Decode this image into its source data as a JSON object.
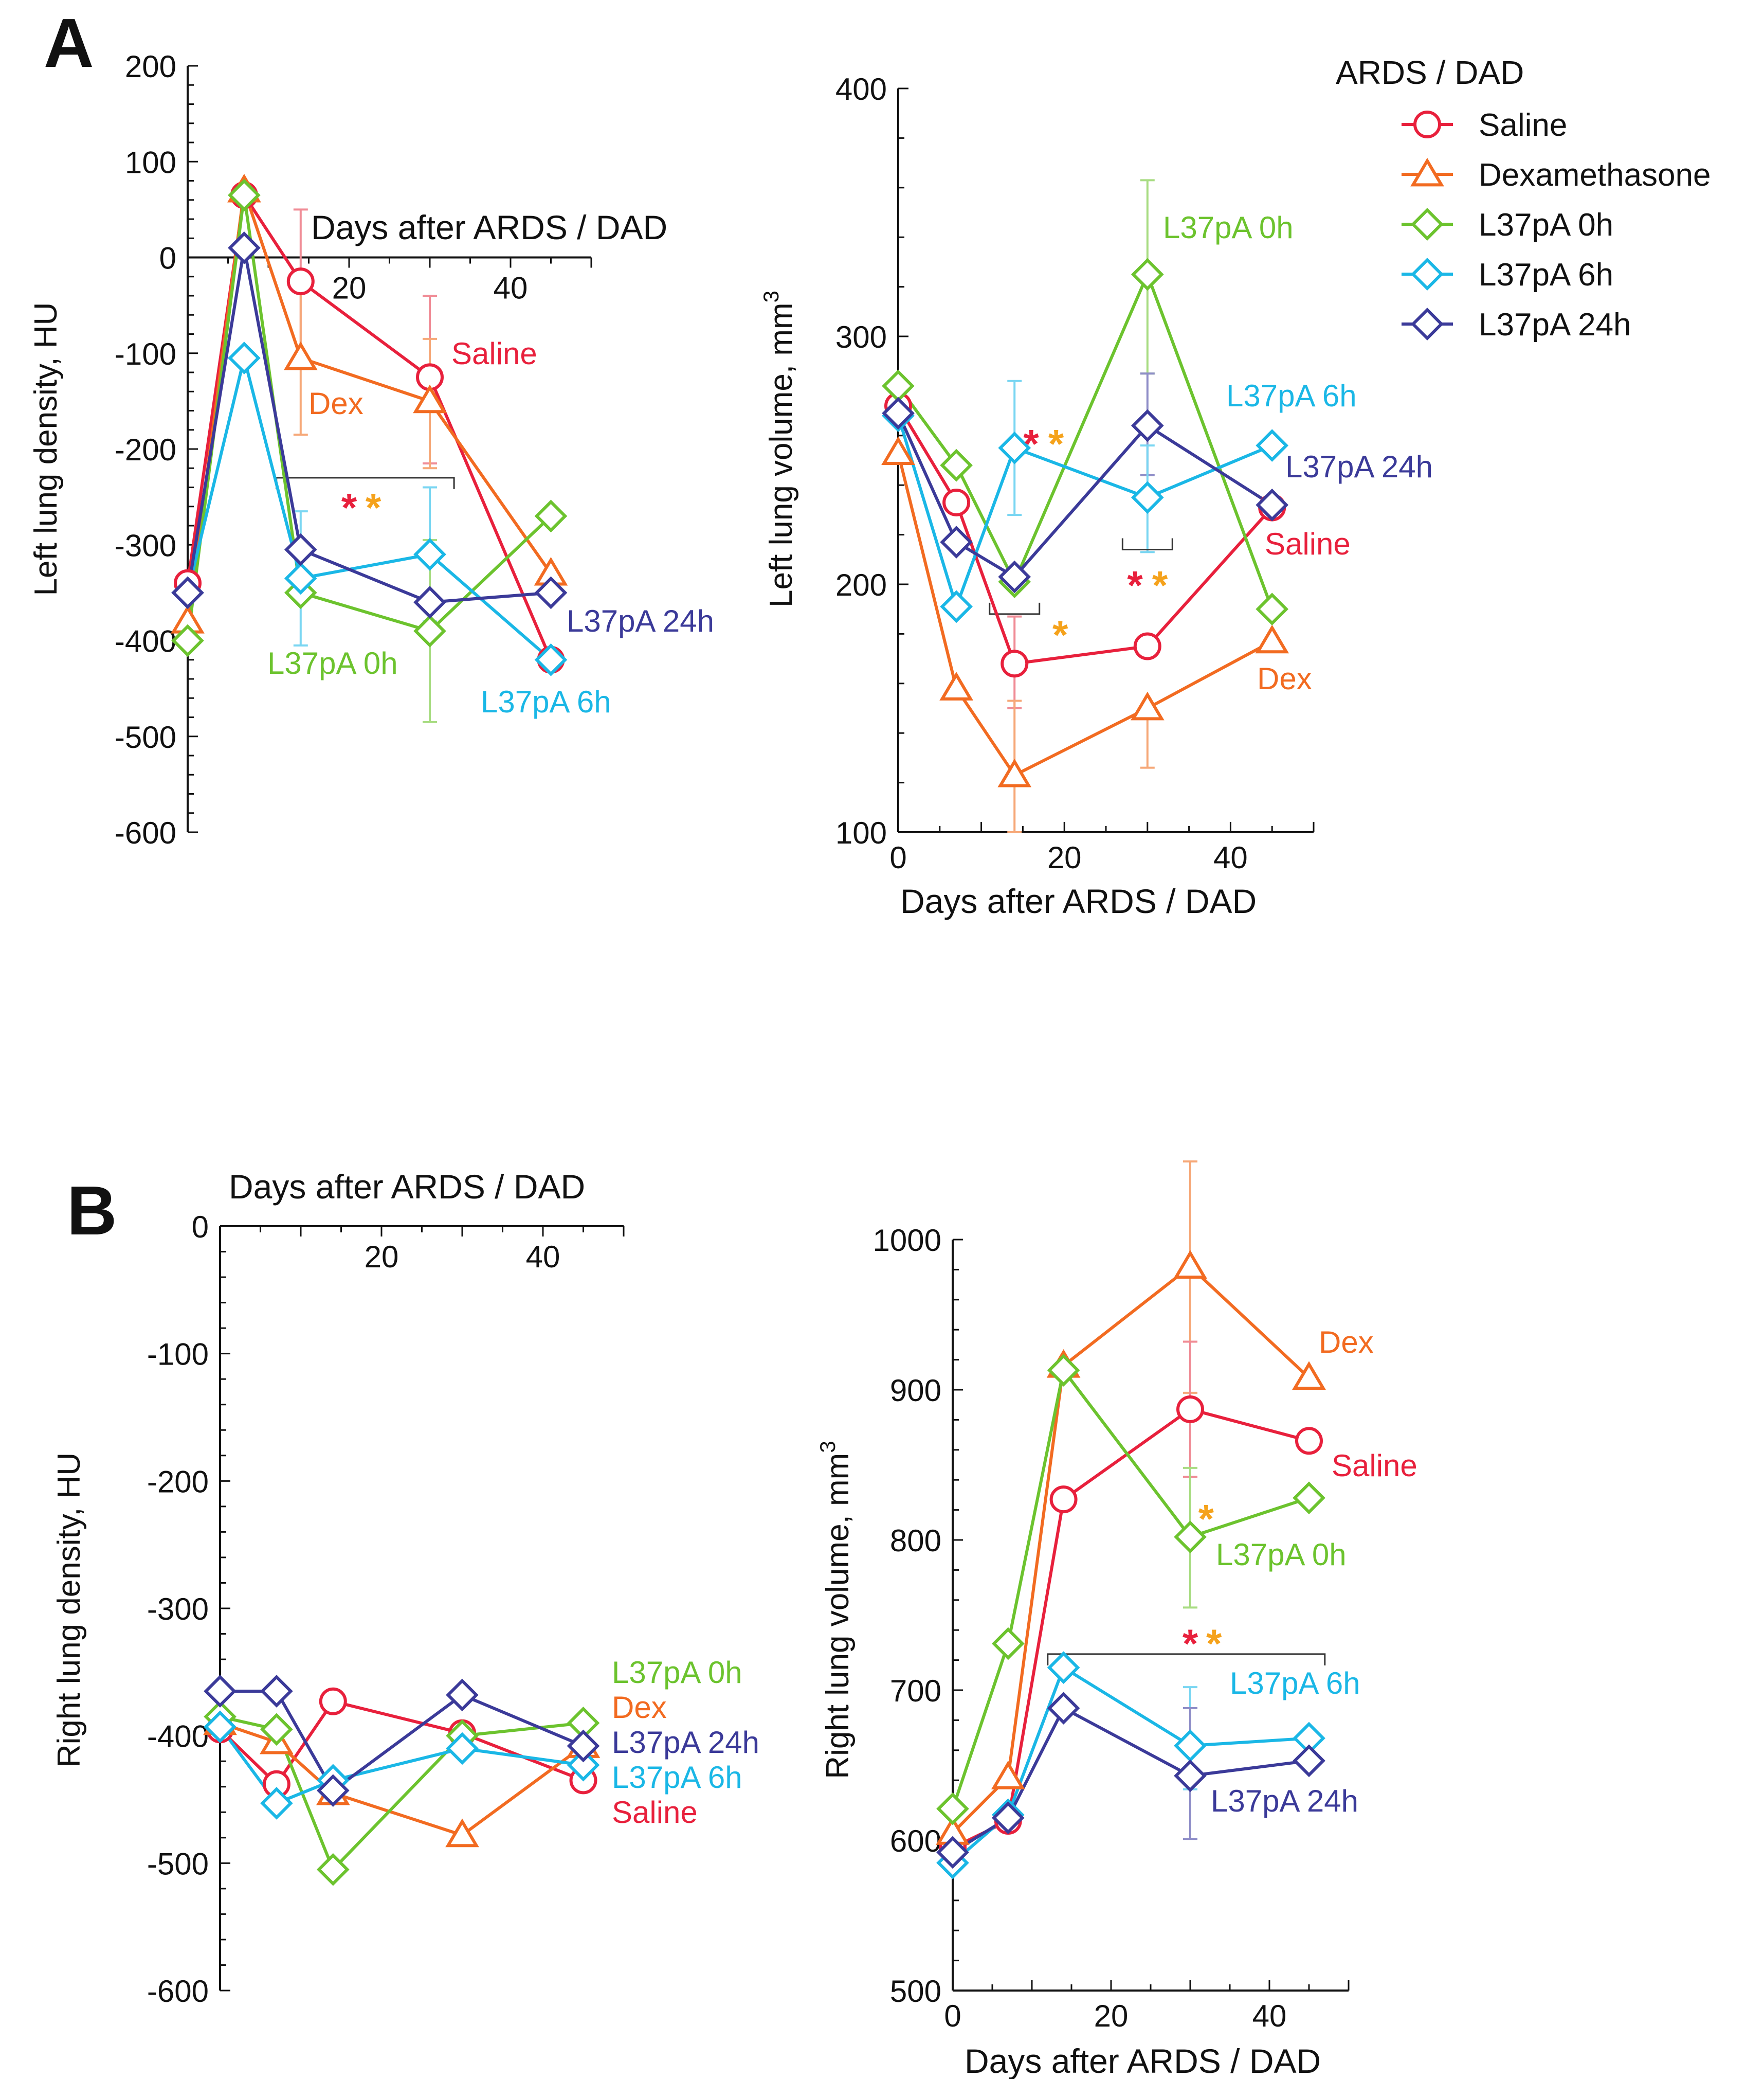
{
  "panel_labels": {
    "a": "A",
    "b": "B"
  },
  "legend": {
    "title": "ARDS / DAD",
    "entries": [
      "Saline",
      "Dexamethasone",
      "L37pA 0h",
      "L37pA 6h",
      "L37pA 24h"
    ]
  },
  "colors": {
    "saline": "#e8203c",
    "dex": "#f26b21",
    "l0": "#6cc32e",
    "l6": "#1ab7e6",
    "l24": "#3b3a99",
    "star_red": "#e8203c",
    "star_orange": "#f5a21b",
    "axis": "#111111",
    "errorbar_saline": "#f08c96",
    "errorbar_dex": "#f6a878",
    "errorbar_l0": "#a8dc82",
    "errorbar_l6": "#7ad6f2",
    "errorbar_l24": "#8f8ec8"
  },
  "chart_data": [
    {
      "id": "A_density",
      "type": "line",
      "title": "",
      "xlabel": "Days after ARDS / DAD",
      "ylabel": "Left lung density, HU",
      "xlim": [
        0,
        50
      ],
      "ylim": [
        -600,
        200
      ],
      "yticks": [
        200,
        100,
        0,
        -100,
        -200,
        -300,
        -400,
        -500,
        -600
      ],
      "xticks": [
        20,
        40
      ],
      "x_axis_at": "y=0 (top)",
      "series": [
        {
          "key": "saline",
          "name": "Saline",
          "marker": "circle",
          "label": "Saline",
          "x": [
            0,
            7,
            14,
            30,
            45
          ],
          "y": [
            -340,
            65,
            -25,
            -125,
            -420
          ]
        },
        {
          "key": "dex",
          "name": "Dexamethasone",
          "marker": "triangle",
          "label": "Dex",
          "x": [
            0,
            7,
            14,
            30,
            45
          ],
          "y": [
            -380,
            70,
            -105,
            -150,
            -330
          ]
        },
        {
          "key": "l0",
          "name": "L37pA 0h",
          "marker": "diamond",
          "label": "L37pA 0h",
          "x": [
            0,
            7,
            14,
            30,
            45
          ],
          "y": [
            -400,
            65,
            -350,
            -390,
            -270
          ]
        },
        {
          "key": "l6",
          "name": "L37pA 6h",
          "marker": "diamond",
          "label": "L37pA 6h",
          "x": [
            0,
            7,
            14,
            30,
            45
          ],
          "y": [
            -350,
            -105,
            -335,
            -310,
            -420
          ]
        },
        {
          "key": "l24",
          "name": "L37pA 24h",
          "marker": "diamond",
          "label": "L37pA 24h",
          "x": [
            0,
            7,
            14,
            30,
            45
          ],
          "y": [
            -350,
            10,
            -305,
            -360,
            -350
          ]
        }
      ],
      "error_bars": [
        {
          "key": "saline",
          "x": 14,
          "lo": -105,
          "hi": 50
        },
        {
          "key": "saline",
          "x": 30,
          "lo": -215,
          "hi": -40
        },
        {
          "key": "dex",
          "x": 14,
          "lo": -185,
          "hi": -25
        },
        {
          "key": "dex",
          "x": 30,
          "lo": -220,
          "hi": -85
        },
        {
          "key": "l6",
          "x": 14,
          "lo": -405,
          "hi": -265
        },
        {
          "key": "l6",
          "x": 30,
          "lo": -380,
          "hi": -240
        },
        {
          "key": "l0",
          "x": 30,
          "lo": -485,
          "hi": -295
        }
      ],
      "brackets": [
        {
          "x1": 11,
          "x2": 33,
          "y": -230,
          "direction": "down"
        }
      ],
      "annotations": [
        {
          "text": "*",
          "color_key": "star_red",
          "x": 20,
          "y": -255
        },
        {
          "text": "*",
          "color_key": "star_orange",
          "x": 23,
          "y": -255
        }
      ]
    },
    {
      "id": "A_volume",
      "type": "line",
      "title": "",
      "xlabel": "Days after ARDS / DAD",
      "ylabel": "Left lung volume, mm",
      "ylabel_sup": "3",
      "xlim": [
        0,
        50
      ],
      "ylim": [
        100,
        400
      ],
      "yticks": [
        400,
        300,
        200,
        100
      ],
      "xticks": [
        0,
        20,
        40
      ],
      "series": [
        {
          "key": "saline",
          "name": "Saline",
          "marker": "circle",
          "label": "Saline",
          "x": [
            0,
            7,
            14,
            30,
            45
          ],
          "y": [
            272,
            233,
            168,
            175,
            231
          ]
        },
        {
          "key": "dex",
          "name": "Dexamethasone",
          "marker": "triangle",
          "label": "Dex",
          "x": [
            0,
            7,
            14,
            30,
            45
          ],
          "y": [
            253,
            158,
            123,
            150,
            177
          ]
        },
        {
          "key": "l0",
          "name": "L37pA 0h",
          "marker": "diamond",
          "label": "L37pA 0h",
          "x": [
            0,
            7,
            14,
            30,
            45
          ],
          "y": [
            280,
            248,
            201,
            325,
            190
          ]
        },
        {
          "key": "l6",
          "name": "L37pA 6h",
          "marker": "diamond",
          "label": "L37pA 6h",
          "x": [
            0,
            7,
            14,
            30,
            45
          ],
          "y": [
            268,
            191,
            255,
            235,
            256
          ]
        },
        {
          "key": "l24",
          "name": "L37pA 24h",
          "marker": "diamond",
          "label": "L37pA 24h",
          "x": [
            0,
            7,
            14,
            30,
            45
          ],
          "y": [
            269,
            217,
            203,
            264,
            232
          ]
        }
      ],
      "error_bars": [
        {
          "key": "l6",
          "x": 14,
          "lo": 228,
          "hi": 282
        },
        {
          "key": "l0",
          "x": 30,
          "lo": 285,
          "hi": 363
        },
        {
          "key": "l24",
          "x": 30,
          "lo": 244,
          "hi": 285
        },
        {
          "key": "l6",
          "x": 30,
          "lo": 213,
          "hi": 256
        },
        {
          "key": "saline",
          "x": 14,
          "lo": 150,
          "hi": 187
        },
        {
          "key": "dex",
          "x": 14,
          "lo": 100,
          "hi": 153
        },
        {
          "key": "dex",
          "x": 30,
          "lo": 126,
          "hi": 150
        }
      ],
      "brackets": [
        {
          "x1": 11,
          "x2": 17,
          "y": 188,
          "direction": "up"
        },
        {
          "x1": 27,
          "x2": 33,
          "y": 214,
          "direction": "up"
        }
      ],
      "annotations": [
        {
          "text": "*",
          "color_key": "star_red",
          "x": 16,
          "y": 259
        },
        {
          "text": "*",
          "color_key": "star_orange",
          "x": 19,
          "y": 259
        },
        {
          "text": "*",
          "color_key": "star_orange",
          "x": 19.5,
          "y": 182
        },
        {
          "text": "*",
          "color_key": "star_red",
          "x": 28.5,
          "y": 202
        },
        {
          "text": "*",
          "color_key": "star_orange",
          "x": 31.5,
          "y": 202
        }
      ]
    },
    {
      "id": "B_density",
      "type": "line",
      "title": "",
      "xlabel": "Days after ARDS / DAD",
      "ylabel": "Right lung density, HU",
      "xlim": [
        0,
        50
      ],
      "ylim": [
        -600,
        0
      ],
      "yticks": [
        0,
        -100,
        -200,
        -300,
        -400,
        -500,
        -600
      ],
      "xticks": [
        20,
        40
      ],
      "x_axis_at": "y=0 (top)",
      "series": [
        {
          "key": "saline",
          "name": "Saline",
          "marker": "circle",
          "label": "Saline",
          "x": [
            0,
            7,
            14,
            30,
            45
          ],
          "y": [
            -395,
            -438,
            -373,
            -398,
            -435
          ]
        },
        {
          "key": "dex",
          "name": "Dexamethasone",
          "marker": "triangle",
          "label": "Dex",
          "x": [
            0,
            7,
            14,
            30,
            45
          ],
          "y": [
            -390,
            -405,
            -445,
            -478,
            -408
          ]
        },
        {
          "key": "l0",
          "name": "L37pA 0h",
          "marker": "diamond",
          "label": "L37pA 0h",
          "x": [
            0,
            7,
            14,
            30,
            45
          ],
          "y": [
            -385,
            -395,
            -505,
            -400,
            -390
          ]
        },
        {
          "key": "l6",
          "name": "L37pA 6h",
          "marker": "diamond",
          "label": "L37pA 6h",
          "x": [
            0,
            7,
            14,
            30,
            45
          ],
          "y": [
            -393,
            -453,
            -435,
            -410,
            -423
          ]
        },
        {
          "key": "l24",
          "name": "L37pA 24h",
          "marker": "diamond",
          "label": "L37pA 24h",
          "x": [
            0,
            7,
            14,
            30,
            45
          ],
          "y": [
            -365,
            -365,
            -443,
            -368,
            -408
          ]
        }
      ],
      "error_bars": [],
      "brackets": [],
      "annotations": []
    },
    {
      "id": "B_volume",
      "type": "line",
      "title": "",
      "xlabel": "Days after ARDS / DAD",
      "ylabel": "Right lung volume, mm",
      "ylabel_sup": "3",
      "xlim": [
        0,
        50
      ],
      "ylim": [
        500,
        1000
      ],
      "yticks": [
        1000,
        900,
        800,
        700,
        600,
        500
      ],
      "xticks": [
        0,
        20,
        40
      ],
      "series": [
        {
          "key": "saline",
          "name": "Saline",
          "marker": "circle",
          "label": "Saline",
          "x": [
            0,
            7,
            14,
            30,
            45
          ],
          "y": [
            595,
            613,
            827,
            887,
            866
          ]
        },
        {
          "key": "dex",
          "name": "Dexamethasone",
          "marker": "triangle",
          "label": "Dex",
          "x": [
            0,
            7,
            14,
            30,
            45
          ],
          "y": [
            605,
            642,
            916,
            982,
            908
          ]
        },
        {
          "key": "l0",
          "name": "L37pA 0h",
          "marker": "diamond",
          "label": "L37pA 0h",
          "x": [
            0,
            7,
            14,
            30,
            45
          ],
          "y": [
            621,
            731,
            913,
            802,
            828
          ]
        },
        {
          "key": "l6",
          "name": "L37pA 6h",
          "marker": "diamond",
          "label": "L37pA 6h",
          "x": [
            0,
            7,
            14,
            30,
            45
          ],
          "y": [
            585,
            617,
            715,
            663,
            668
          ]
        },
        {
          "key": "l24",
          "name": "L37pA 24h",
          "marker": "diamond",
          "label": "L37pA 24h",
          "x": [
            0,
            7,
            14,
            30,
            45
          ],
          "y": [
            592,
            615,
            688,
            643,
            653
          ]
        }
      ],
      "error_bars": [
        {
          "key": "dex",
          "x": 30,
          "lo": 898,
          "hi": 1052
        },
        {
          "key": "saline",
          "x": 30,
          "lo": 842,
          "hi": 932
        },
        {
          "key": "l0",
          "x": 30,
          "lo": 755,
          "hi": 848
        },
        {
          "key": "l6",
          "x": 30,
          "lo": 634,
          "hi": 702
        },
        {
          "key": "l24",
          "x": 30,
          "lo": 601,
          "hi": 688
        }
      ],
      "brackets": [
        {
          "x1": 12,
          "x2": 47,
          "y": 724,
          "direction": "down"
        }
      ],
      "annotations": [
        {
          "text": "*",
          "color_key": "star_orange",
          "x": 32,
          "y": 818
        },
        {
          "text": "*",
          "color_key": "star_red",
          "x": 30,
          "y": 735
        },
        {
          "text": "*",
          "color_key": "star_orange",
          "x": 33,
          "y": 735
        }
      ]
    }
  ]
}
